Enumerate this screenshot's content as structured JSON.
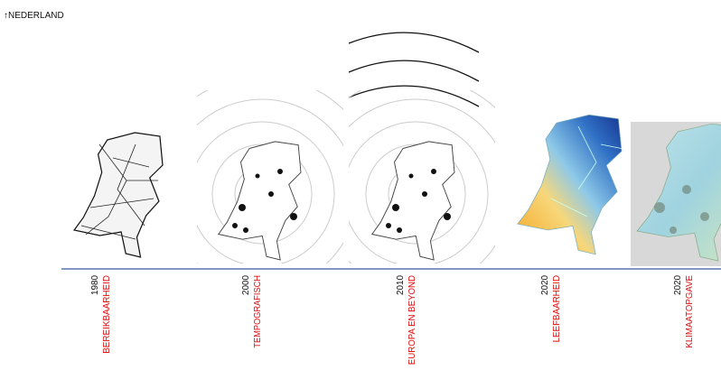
{
  "header": {
    "title": "↑NEDERLAND"
  },
  "timeline": {
    "items": [
      {
        "year": "1980",
        "label": "BEREIKBAARHEID"
      },
      {
        "year": "2000",
        "label": "TEMPOGRAFISCH"
      },
      {
        "year": "2010",
        "label": "EUROPA EN BEYOND"
      },
      {
        "year": "2020",
        "label": "LEEFBAARHEID"
      },
      {
        "year": "2020",
        "label": "KLIMAATOPGAVE"
      }
    ]
  }
}
